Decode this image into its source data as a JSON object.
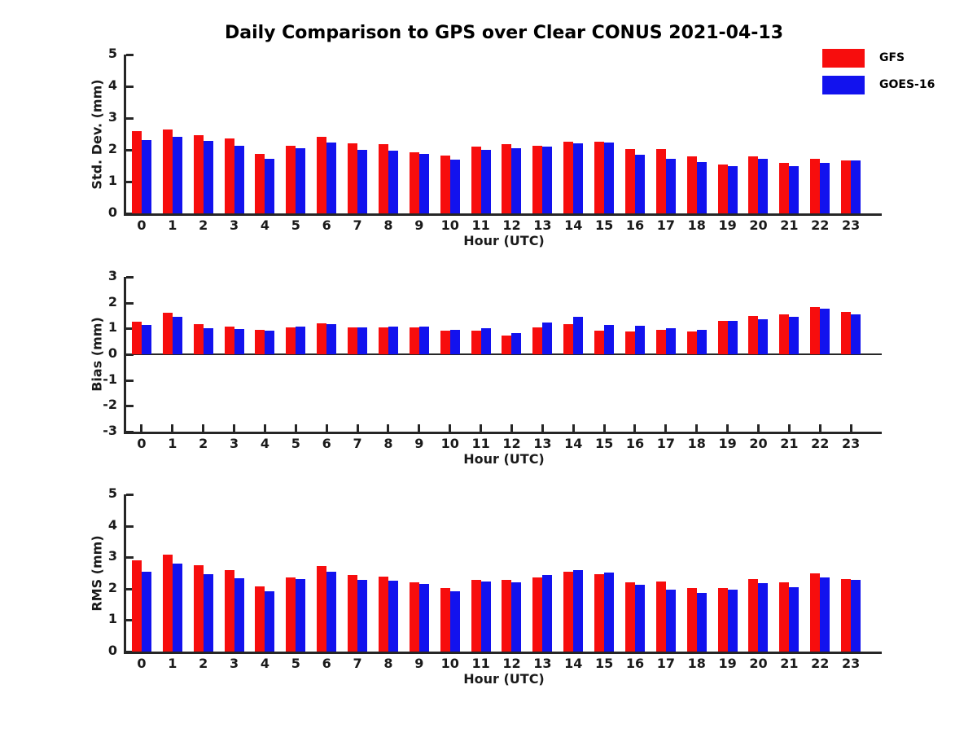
{
  "title": "Daily Comparison to GPS over Clear CONUS 2021-04-13",
  "colors": {
    "gfs_red": "#f70d0d",
    "goes_blue": "#1212ee",
    "axis": "#262626",
    "text": "#000000"
  },
  "legend": {
    "position": "top-right",
    "entries": [
      {
        "label": "GFS",
        "color": "#f70d0d"
      },
      {
        "label": "GOES-16",
        "color": "#1212ee"
      }
    ]
  },
  "chart_data": [
    {
      "type": "bar",
      "title": "Daily Comparison to GPS over Clear CONUS 2021-04-13",
      "ylabel": "Std. Dev. (mm)",
      "xlabel": "Hour (UTC)",
      "ylim": [
        0,
        5
      ],
      "yticks": [
        0,
        1,
        2,
        3,
        4,
        5
      ],
      "grid": false,
      "categories": [
        0,
        1,
        2,
        3,
        4,
        5,
        6,
        7,
        8,
        9,
        10,
        11,
        12,
        13,
        14,
        15,
        16,
        17,
        18,
        19,
        20,
        21,
        22,
        23
      ],
      "series": [
        {
          "name": "GFS",
          "values": [
            2.6,
            2.65,
            2.47,
            2.37,
            1.87,
            2.13,
            2.4,
            2.21,
            2.17,
            1.93,
            1.82,
            2.1,
            2.18,
            2.12,
            2.25,
            2.25,
            2.02,
            2.02,
            1.8,
            1.55,
            1.79,
            1.58,
            1.71,
            1.66
          ]
        },
        {
          "name": "GOES-16",
          "values": [
            2.3,
            2.42,
            2.27,
            2.13,
            1.72,
            2.05,
            2.22,
            2.01,
            1.98,
            1.87,
            1.69,
            2.0,
            2.05,
            2.09,
            2.2,
            2.23,
            1.84,
            1.72,
            1.62,
            1.48,
            1.72,
            1.48,
            1.59,
            1.66
          ]
        }
      ]
    },
    {
      "type": "bar",
      "ylabel": "Bias (mm)",
      "xlabel": "Hour (UTC)",
      "ylim": [
        -3,
        3
      ],
      "yticks": [
        -3,
        -2,
        -1,
        0,
        1,
        2,
        3
      ],
      "grid": false,
      "categories": [
        0,
        1,
        2,
        3,
        4,
        5,
        6,
        7,
        8,
        9,
        10,
        11,
        12,
        13,
        14,
        15,
        16,
        17,
        18,
        19,
        20,
        21,
        22,
        23
      ],
      "series": [
        {
          "name": "GFS",
          "values": [
            1.25,
            1.61,
            1.17,
            1.07,
            0.94,
            1.04,
            1.2,
            1.03,
            1.03,
            1.03,
            0.93,
            0.91,
            0.72,
            1.04,
            1.18,
            0.93,
            0.9,
            0.96,
            0.9,
            1.3,
            1.47,
            1.55,
            1.82,
            1.65
          ]
        },
        {
          "name": "GOES-16",
          "values": [
            1.13,
            1.45,
            1.0,
            0.98,
            0.91,
            1.07,
            1.18,
            1.03,
            1.07,
            1.07,
            0.95,
            1.02,
            0.83,
            1.23,
            1.45,
            1.13,
            1.09,
            1.0,
            0.94,
            1.3,
            1.37,
            1.46,
            1.76,
            1.55
          ]
        }
      ]
    },
    {
      "type": "bar",
      "ylabel": "RMS (mm)",
      "xlabel": "Hour (UTC)",
      "ylim": [
        0,
        5
      ],
      "yticks": [
        0,
        1,
        2,
        3,
        4,
        5
      ],
      "grid": false,
      "categories": [
        0,
        1,
        2,
        3,
        4,
        5,
        6,
        7,
        8,
        9,
        10,
        11,
        12,
        13,
        14,
        15,
        16,
        17,
        18,
        19,
        20,
        21,
        22,
        23
      ],
      "series": [
        {
          "name": "GFS",
          "values": [
            2.89,
            3.09,
            2.74,
            2.6,
            2.08,
            2.37,
            2.72,
            2.44,
            2.39,
            2.2,
            2.03,
            2.27,
            2.29,
            2.36,
            2.55,
            2.46,
            2.21,
            2.24,
            2.01,
            2.01,
            2.3,
            2.19,
            2.49,
            2.31
          ]
        },
        {
          "name": "GOES-16",
          "values": [
            2.55,
            2.81,
            2.47,
            2.34,
            1.92,
            2.3,
            2.53,
            2.27,
            2.25,
            2.16,
            1.92,
            2.24,
            2.21,
            2.43,
            2.6,
            2.52,
            2.13,
            1.98,
            1.87,
            1.96,
            2.18,
            2.05,
            2.36,
            2.27
          ]
        }
      ]
    }
  ]
}
